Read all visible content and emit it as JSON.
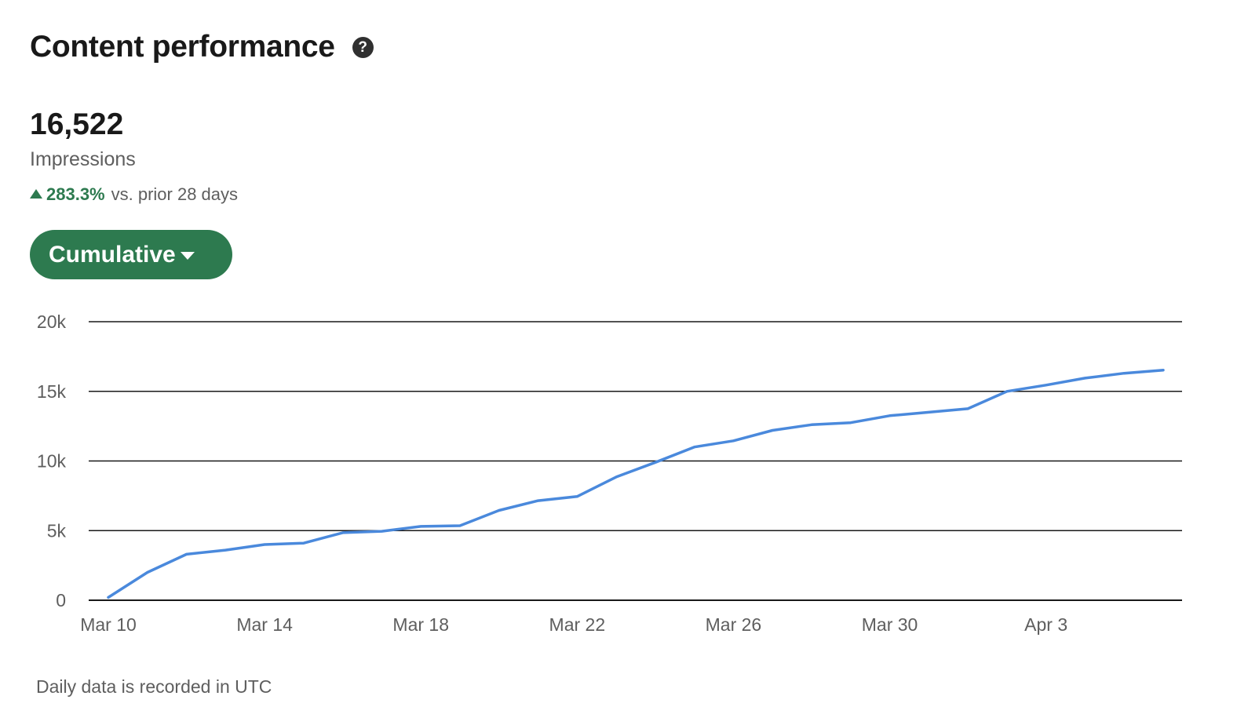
{
  "header": {
    "title": "Content performance",
    "help_icon": "question-circle-icon",
    "help_glyph": "?"
  },
  "metric": {
    "value": "16,522",
    "label": "Impressions",
    "change_pct": "283.3%",
    "change_text": "vs. prior 28 days",
    "change_direction": "up"
  },
  "controls": {
    "mode_label": "Cumulative",
    "mode_icon": "caret-down-icon"
  },
  "colors": {
    "accent_green": "#2d7a4f",
    "line_blue": "#4a89dc",
    "grid": "#191919",
    "muted_text": "#5e5e5e"
  },
  "chart_data": {
    "type": "line",
    "title": "",
    "xlabel": "",
    "ylabel": "",
    "ylim": [
      0,
      20000
    ],
    "yticks": [
      0,
      5000,
      10000,
      15000,
      20000
    ],
    "ytick_labels": [
      "0",
      "5k",
      "10k",
      "15k",
      "20k"
    ],
    "xticks": [
      "Mar 10",
      "Mar 14",
      "Mar 18",
      "Mar 22",
      "Mar 26",
      "Mar 30",
      "Apr 3"
    ],
    "grid": true,
    "x": [
      "Mar 10",
      "Mar 11",
      "Mar 12",
      "Mar 13",
      "Mar 14",
      "Mar 15",
      "Mar 16",
      "Mar 17",
      "Mar 18",
      "Mar 19",
      "Mar 20",
      "Mar 21",
      "Mar 22",
      "Mar 23",
      "Mar 24",
      "Mar 25",
      "Mar 26",
      "Mar 27",
      "Mar 28",
      "Mar 29",
      "Mar 30",
      "Mar 31",
      "Apr 1",
      "Apr 2",
      "Apr 3",
      "Apr 4",
      "Apr 5",
      "Apr 6"
    ],
    "series": [
      {
        "values": [
          200,
          2000,
          3300,
          3600,
          4000,
          4100,
          4850,
          4950,
          5300,
          5350,
          6450,
          7150,
          7450,
          8850,
          9900,
          11000,
          11450,
          12200,
          12600,
          12750,
          13250,
          13500,
          13750,
          15000,
          15450,
          15950,
          16300,
          16522
        ]
      }
    ]
  },
  "footer": {
    "note": "Daily data is recorded in UTC"
  }
}
